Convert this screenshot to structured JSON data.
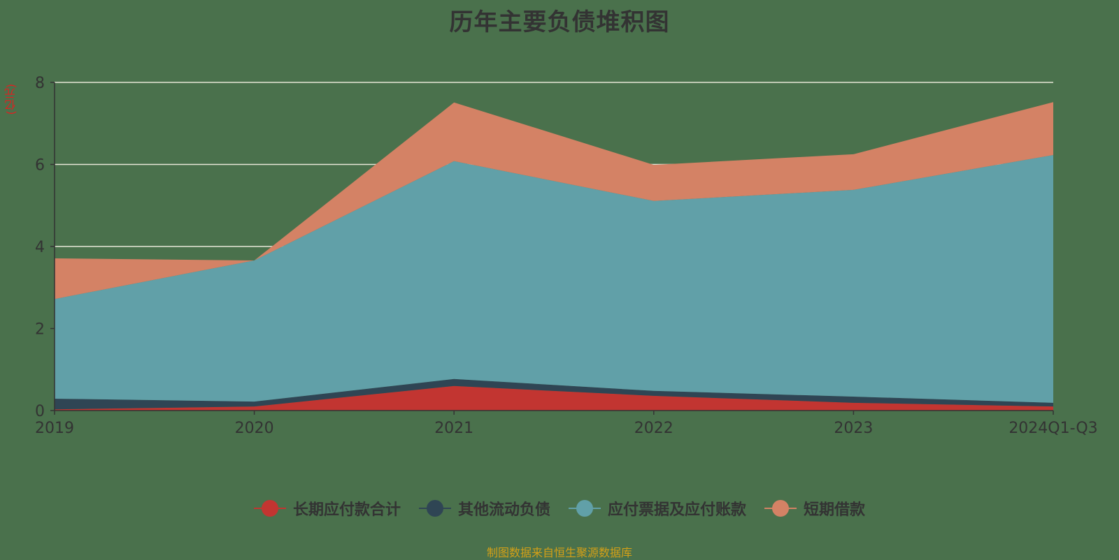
{
  "title": "历年主要负债堆积图",
  "unit_label": "(亿元)",
  "source_note": "制图数据来自恒生聚源数据库",
  "chart_data": {
    "type": "area",
    "stacked": true,
    "title": "历年主要负债堆积图",
    "xlabel": "",
    "ylabel": "(亿元)",
    "ylim": [
      0,
      8
    ],
    "yticks": [
      0,
      2,
      4,
      6,
      8
    ],
    "grid": true,
    "legend_position": "bottom",
    "categories": [
      "2019",
      "2020",
      "2021",
      "2022",
      "2023",
      "2024Q1-Q3"
    ],
    "series": [
      {
        "name": "长期应付款合计",
        "color": "#c23531",
        "values": [
          0.03,
          0.1,
          0.6,
          0.36,
          0.19,
          0.1
        ]
      },
      {
        "name": "其他流动负债",
        "color": "#2f4554",
        "values": [
          0.26,
          0.12,
          0.17,
          0.12,
          0.15,
          0.09
        ]
      },
      {
        "name": "应付票据及应付账款",
        "color": "#61a0a8",
        "values": [
          2.43,
          3.44,
          5.31,
          4.63,
          5.04,
          6.04
        ]
      },
      {
        "name": "短期借款",
        "color": "#d48265",
        "values": [
          0.99,
          0.0,
          1.43,
          0.88,
          0.87,
          1.29
        ]
      }
    ]
  },
  "legend": [
    {
      "label": "长期应付款合计",
      "color": "#c23531"
    },
    {
      "label": "其他流动负债",
      "color": "#2f4554"
    },
    {
      "label": "应付票据及应付账款",
      "color": "#61a0a8"
    },
    {
      "label": "短期借款",
      "color": "#d48265"
    }
  ]
}
